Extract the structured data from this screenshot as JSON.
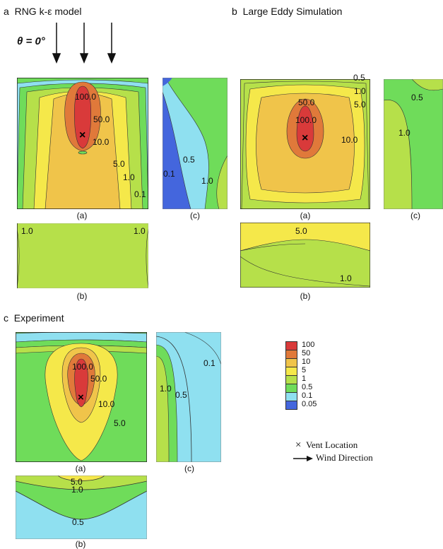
{
  "panels": {
    "rng": {
      "letter": "a",
      "title": "RNG k-ε model"
    },
    "les": {
      "letter": "b",
      "title": "Large Eddy Simulation"
    },
    "exp": {
      "letter": "c",
      "title": "Experiment"
    }
  },
  "angle_label": "θ = 0°",
  "view_labels": {
    "a": "(a)",
    "b": "(b)",
    "c": "(c)"
  },
  "contours": {
    "rng_a": [
      "100.0",
      "50.0",
      "10.0",
      "5.0",
      "1.0",
      "0.1"
    ],
    "rng_b": [
      "1.0",
      "1.0"
    ],
    "rng_c": [
      "0.5",
      "0.1",
      "1.0"
    ],
    "les_a": [
      "0.5",
      "1.0",
      "5.0",
      "50.0",
      "100.0",
      "10.0"
    ],
    "les_b": [
      "5.0",
      "1.0"
    ],
    "les_c": [
      "0.5",
      "1.0"
    ],
    "exp_a": [
      "100.0",
      "50.0",
      "10.0",
      "5.0"
    ],
    "exp_b": [
      "5.0",
      "1.0",
      "0.5"
    ],
    "exp_c": [
      "0.1",
      "1.0",
      "0.5"
    ]
  },
  "legend": {
    "items": [
      {
        "label": "100",
        "color": "#d93a3a"
      },
      {
        "label": "50",
        "color": "#e0793a"
      },
      {
        "label": "10",
        "color": "#f0c44a"
      },
      {
        "label": "5",
        "color": "#f5e84a"
      },
      {
        "label": "1",
        "color": "#b6e04a"
      },
      {
        "label": "0.5",
        "color": "#6fdc5a"
      },
      {
        "label": "0.1",
        "color": "#8fe0f0"
      },
      {
        "label": "0.05",
        "color": "#4466dd"
      }
    ],
    "vent_symbol": "×",
    "vent_label": "Vent Location",
    "wind_label": "Wind Direction"
  }
}
